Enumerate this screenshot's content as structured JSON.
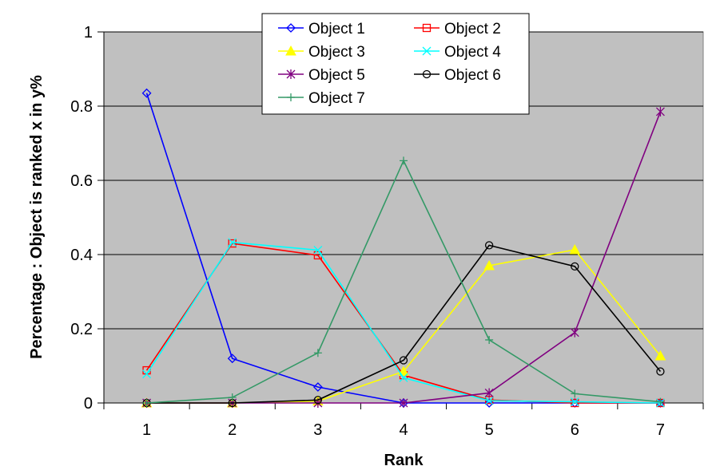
{
  "chart_data": {
    "type": "line",
    "title": "",
    "xlabel": "Rank",
    "ylabel": "Percentage : Object is ranked x in y%",
    "x": [
      1,
      2,
      3,
      4,
      5,
      6,
      7
    ],
    "x_tick_labels": [
      "1",
      "2",
      "3",
      "4",
      "5",
      "6",
      "7"
    ],
    "y_tick_labels": [
      "0",
      "0.2",
      "0.4",
      "0.6",
      "0.8",
      "1"
    ],
    "ylim": [
      0,
      1
    ],
    "grid": "horizontal",
    "legend_position": "top",
    "background_color": "#c0c0c0",
    "series": [
      {
        "name": "Object 1",
        "color": "#0000ff",
        "marker": "diamond",
        "values": [
          0.835,
          0.12,
          0.043,
          0.0,
          0.0,
          0.0,
          0.0
        ]
      },
      {
        "name": "Object 2",
        "color": "#ff0000",
        "marker": "square",
        "values": [
          0.088,
          0.43,
          0.398,
          0.075,
          0.008,
          0.0,
          0.0
        ]
      },
      {
        "name": "Object 3",
        "color": "#ffff00",
        "marker": "triangle",
        "values": [
          0.0,
          0.0,
          0.005,
          0.085,
          0.37,
          0.413,
          0.127
        ]
      },
      {
        "name": "Object 4",
        "color": "#00ffff",
        "marker": "x",
        "values": [
          0.078,
          0.433,
          0.412,
          0.068,
          0.006,
          0.003,
          0.0
        ]
      },
      {
        "name": "Object 5",
        "color": "#800080",
        "marker": "star",
        "values": [
          0.0,
          0.0,
          0.0,
          0.0,
          0.027,
          0.19,
          0.785
        ]
      },
      {
        "name": "Object 6",
        "color": "#000000",
        "marker": "circle",
        "values": [
          0.0,
          0.0,
          0.008,
          0.115,
          0.425,
          0.368,
          0.085
        ]
      },
      {
        "name": "Object 7",
        "color": "#339966",
        "marker": "plus",
        "values": [
          0.0,
          0.015,
          0.135,
          0.653,
          0.17,
          0.025,
          0.003
        ]
      }
    ]
  }
}
